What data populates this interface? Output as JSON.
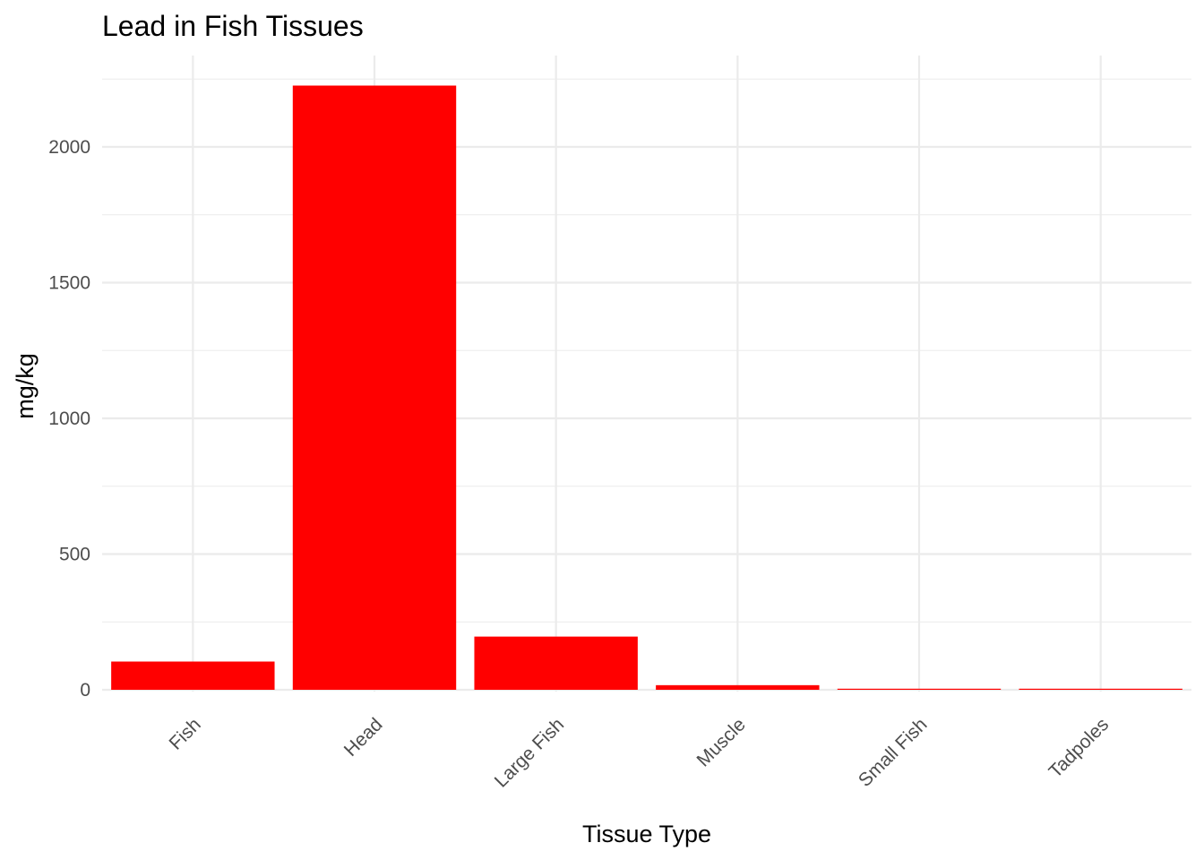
{
  "chart_data": {
    "type": "bar",
    "title": "Lead in Fish Tissues",
    "xlabel": "Tissue Type",
    "ylabel": "mg/kg",
    "categories": [
      "Fish",
      "Head",
      "Large Fish",
      "Muscle",
      "Small Fish",
      "Tadpoles"
    ],
    "values": [
      104,
      2226,
      196,
      17,
      2,
      2
    ],
    "ylim": [
      0,
      2250
    ],
    "yticks": [
      0,
      500,
      1000,
      1500,
      2000
    ],
    "ytick_labels": [
      "0",
      "500",
      "1000",
      "1500",
      "2000"
    ],
    "grid": true,
    "legend": "none",
    "bar_color": "#FF0000",
    "theme": "minimal"
  }
}
